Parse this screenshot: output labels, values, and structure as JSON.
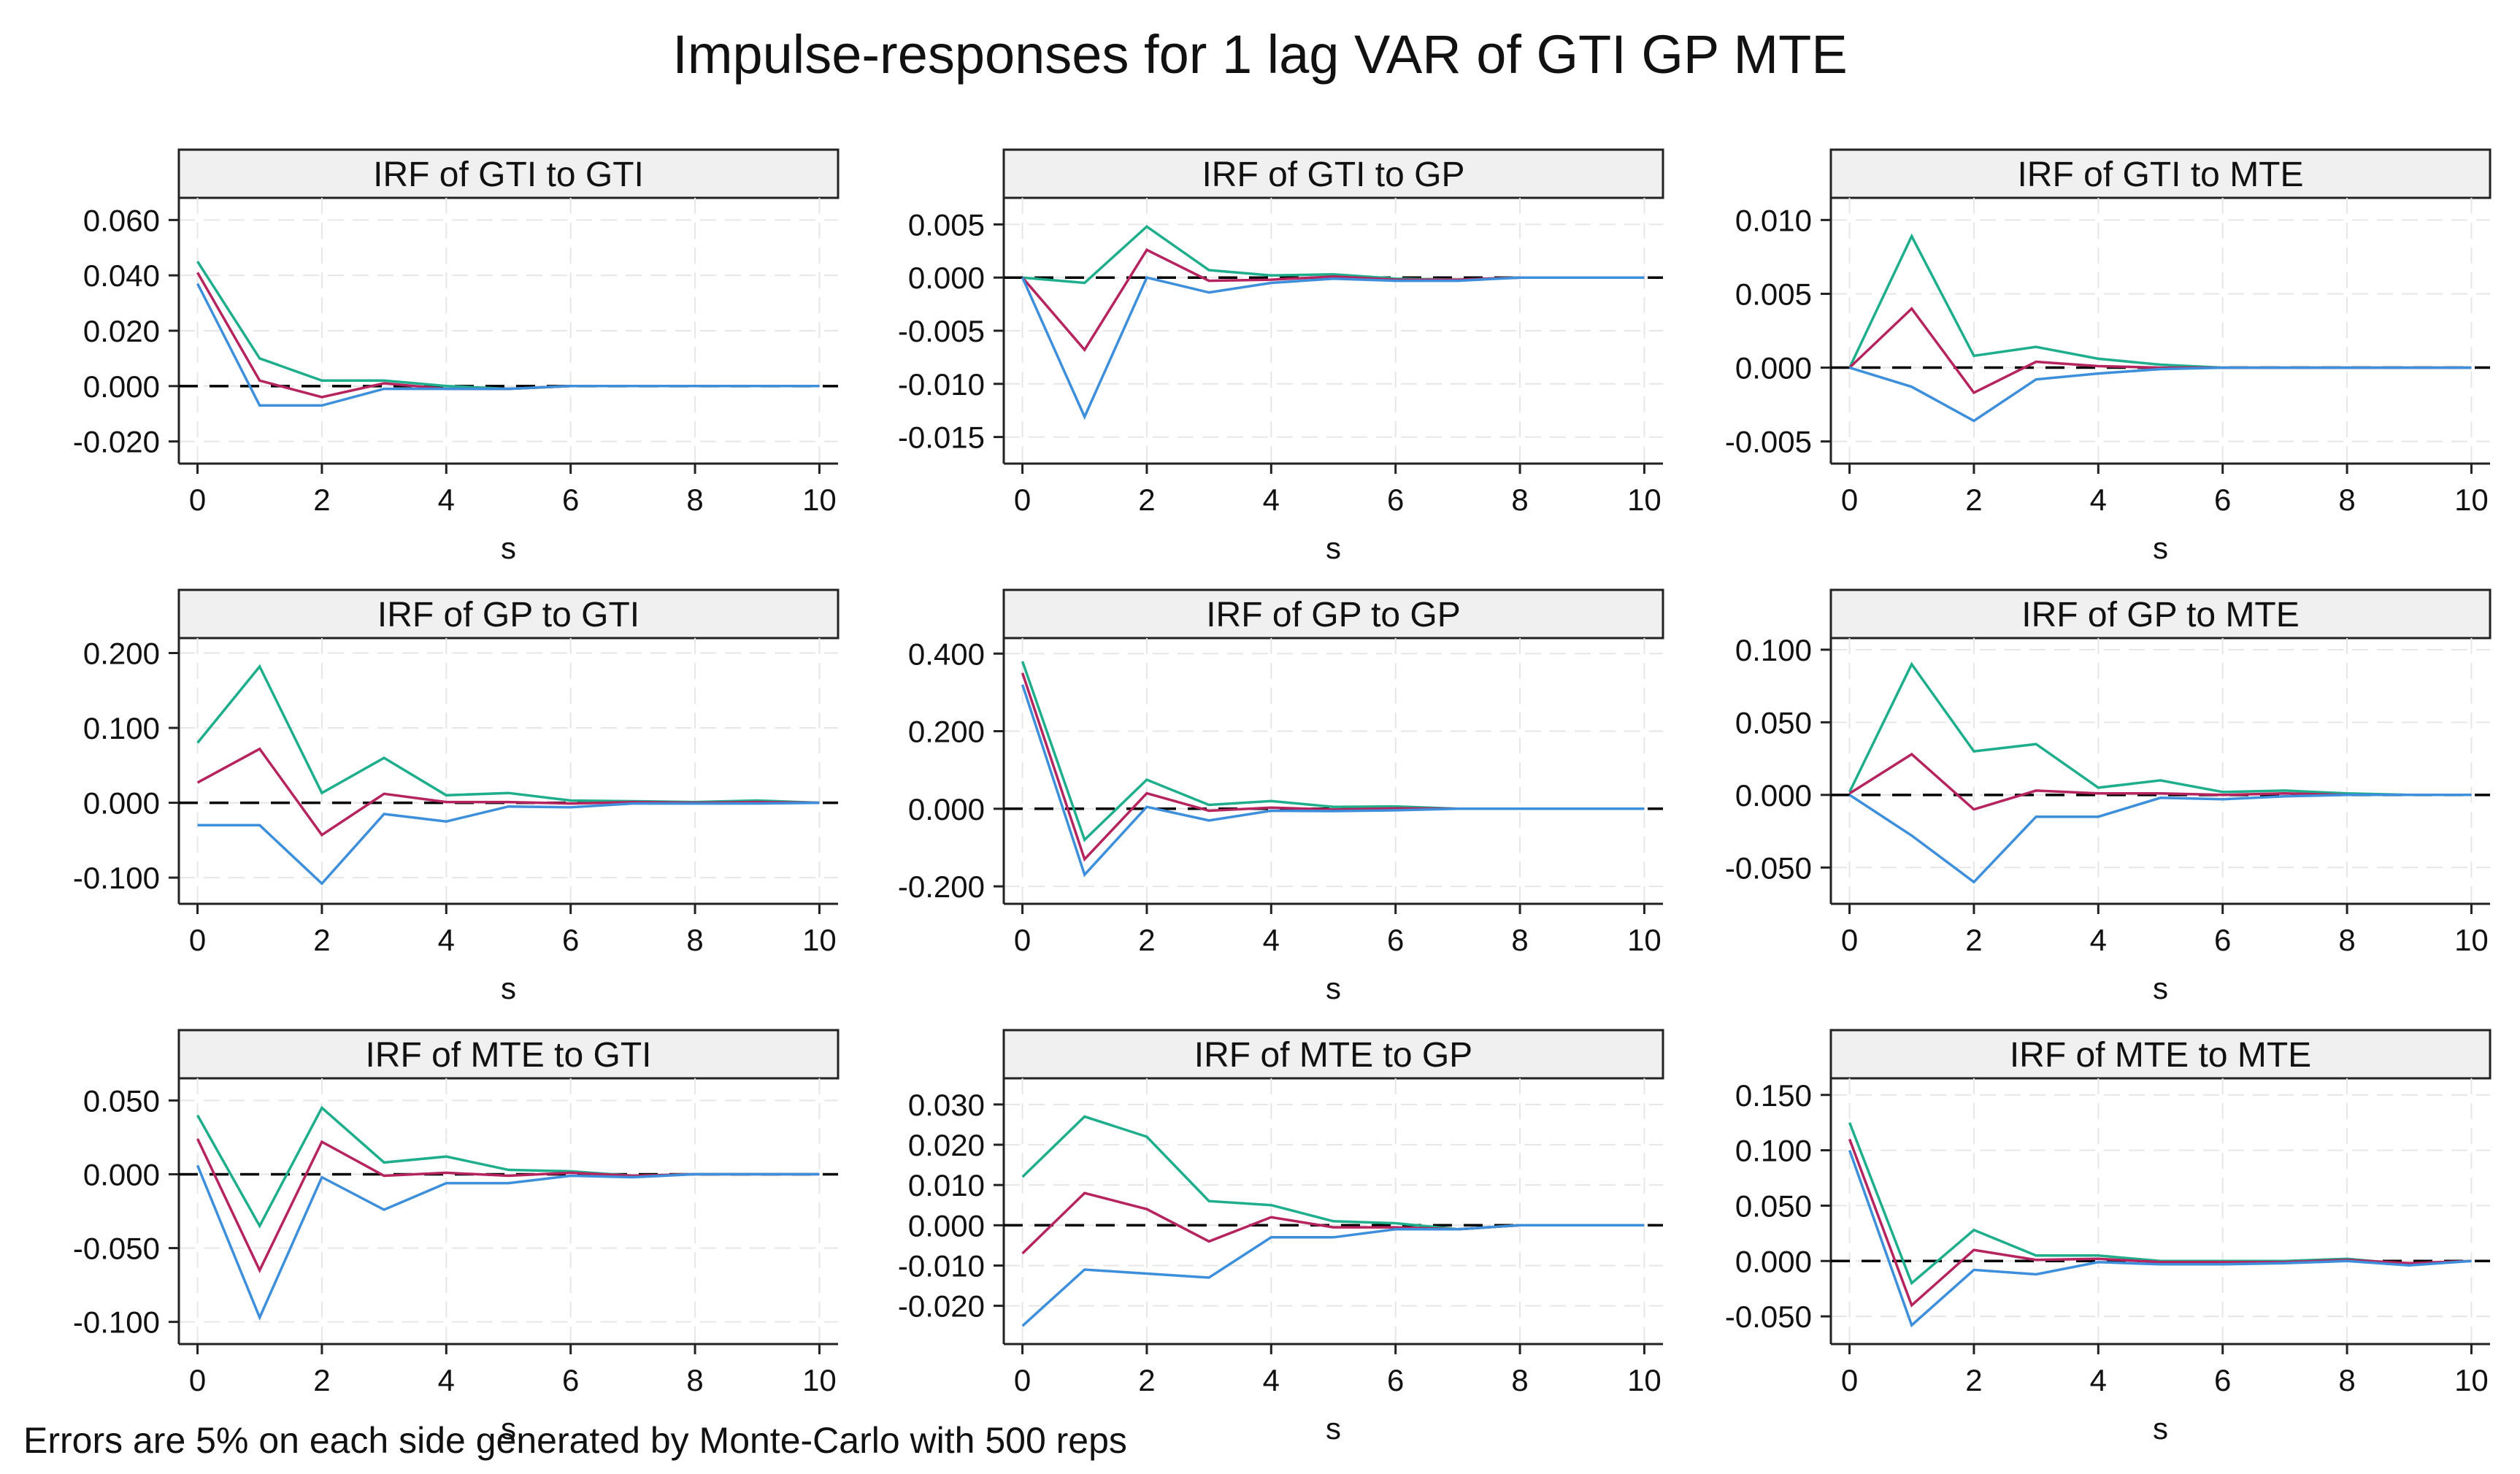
{
  "title": "Impulse-responses for 1 lag VAR of GTI GP MTE",
  "note": "Errors are 5% on each side generated by Monte-Carlo with 500 reps",
  "colors": {
    "upper": "#1fae8c",
    "irf": "#b5245e",
    "lower": "#3d8fdb"
  },
  "chart_data": [
    {
      "type": "line",
      "title": "IRF of GTI to GTI",
      "xlabel": "s",
      "x": [
        0,
        1,
        2,
        3,
        4,
        5,
        6,
        7,
        8,
        9,
        10
      ],
      "xticks": [
        0,
        2,
        4,
        6,
        8,
        10
      ],
      "xtick_labels": [
        "0",
        "2",
        "4",
        "6",
        "8",
        "10"
      ],
      "ylim": [
        -0.028,
        0.068
      ],
      "yticks": [
        -0.02,
        0,
        0.02,
        0.04,
        0.06
      ],
      "ytick_labels": [
        "-0.020",
        "0.000",
        "0.020",
        "0.040",
        "0.060"
      ],
      "series": [
        {
          "name": "upper",
          "values": [
            0.045,
            0.01,
            0.002,
            0.002,
            0.0,
            -0.001,
            0,
            0,
            0,
            0,
            0
          ]
        },
        {
          "name": "irf",
          "values": [
            0.041,
            0.002,
            -0.004,
            0.001,
            -0.001,
            -0.001,
            0,
            0,
            0,
            0,
            0
          ]
        },
        {
          "name": "lower",
          "values": [
            0.037,
            -0.007,
            -0.007,
            -0.001,
            -0.001,
            -0.001,
            0,
            0,
            0,
            0,
            0
          ]
        }
      ]
    },
    {
      "type": "line",
      "title": "IRF of GTI to GP",
      "xlabel": "s",
      "x": [
        0,
        1,
        2,
        3,
        4,
        5,
        6,
        7,
        8,
        9,
        10
      ],
      "xticks": [
        0,
        2,
        4,
        6,
        8,
        10
      ],
      "xtick_labels": [
        "0",
        "2",
        "4",
        "6",
        "8",
        "10"
      ],
      "ylim": [
        -0.0175,
        0.0075
      ],
      "yticks": [
        -0.015,
        -0.01,
        -0.005,
        0,
        0.005
      ],
      "ytick_labels": [
        "-0.015",
        "-0.010",
        "-0.005",
        "0.000",
        "0.005"
      ],
      "series": [
        {
          "name": "upper",
          "values": [
            0,
            -0.0005,
            0.0048,
            0.0007,
            0.0002,
            0.0003,
            -0.0001,
            -0.0002,
            0,
            0,
            0
          ]
        },
        {
          "name": "irf",
          "values": [
            0,
            -0.0068,
            0.0026,
            -0.0003,
            -0.0002,
            0.0001,
            -0.0002,
            -0.0002,
            0,
            0,
            0
          ]
        },
        {
          "name": "lower",
          "values": [
            0,
            -0.0131,
            0.0,
            -0.0014,
            -0.0005,
            -0.0001,
            -0.0003,
            -0.0003,
            0,
            0,
            0
          ]
        }
      ]
    },
    {
      "type": "line",
      "title": "IRF of GTI to MTE",
      "xlabel": "s",
      "x": [
        0,
        1,
        2,
        3,
        4,
        5,
        6,
        7,
        8,
        9,
        10
      ],
      "xticks": [
        0,
        2,
        4,
        6,
        8,
        10
      ],
      "xtick_labels": [
        "0",
        "2",
        "4",
        "6",
        "8",
        "10"
      ],
      "ylim": [
        -0.0065,
        0.0115
      ],
      "yticks": [
        -0.005,
        0,
        0.005,
        0.01
      ],
      "ytick_labels": [
        "-0.005",
        "0.000",
        "0.005",
        "0.010"
      ],
      "series": [
        {
          "name": "upper",
          "values": [
            0,
            0.0089,
            0.0008,
            0.0014,
            0.0006,
            0.0002,
            0,
            0,
            0,
            0,
            0
          ]
        },
        {
          "name": "irf",
          "values": [
            0,
            0.004,
            -0.0017,
            0.0004,
            0.0001,
            0,
            0,
            0,
            0,
            0,
            0
          ]
        },
        {
          "name": "lower",
          "values": [
            0,
            -0.0013,
            -0.0036,
            -0.0008,
            -0.0004,
            -0.0001,
            0,
            0,
            0,
            0,
            0
          ]
        }
      ]
    },
    {
      "type": "line",
      "title": "IRF of GP to GTI",
      "xlabel": "s",
      "x": [
        0,
        1,
        2,
        3,
        4,
        5,
        6,
        7,
        8,
        9,
        10
      ],
      "xticks": [
        0,
        2,
        4,
        6,
        8,
        10
      ],
      "xtick_labels": [
        "0",
        "2",
        "4",
        "6",
        "8",
        "10"
      ],
      "ylim": [
        -0.135,
        0.22
      ],
      "yticks": [
        -0.1,
        0,
        0.1,
        0.2
      ],
      "ytick_labels": [
        "-0.100",
        "0.000",
        "0.100",
        "0.200"
      ],
      "series": [
        {
          "name": "upper",
          "values": [
            0.08,
            0.182,
            0.013,
            0.06,
            0.01,
            0.013,
            0.003,
            0.002,
            0.001,
            0.003,
            0
          ]
        },
        {
          "name": "irf",
          "values": [
            0.027,
            0.072,
            -0.043,
            0.012,
            0.001,
            0.001,
            -0.001,
            0.001,
            0,
            0.001,
            0
          ]
        },
        {
          "name": "lower",
          "values": [
            -0.03,
            -0.03,
            -0.108,
            -0.015,
            -0.025,
            -0.005,
            -0.006,
            -0.001,
            -0.001,
            -0.001,
            0
          ]
        }
      ]
    },
    {
      "type": "line",
      "title": "IRF of GP to GP",
      "xlabel": "s",
      "x": [
        0,
        1,
        2,
        3,
        4,
        5,
        6,
        7,
        8,
        9,
        10
      ],
      "xticks": [
        0,
        2,
        4,
        6,
        8,
        10
      ],
      "xtick_labels": [
        "0",
        "2",
        "4",
        "6",
        "8",
        "10"
      ],
      "ylim": [
        -0.245,
        0.44
      ],
      "yticks": [
        -0.2,
        0,
        0.2,
        0.4
      ],
      "ytick_labels": [
        "-0.200",
        "0.000",
        "0.200",
        "0.400"
      ],
      "series": [
        {
          "name": "upper",
          "values": [
            0.38,
            -0.08,
            0.075,
            0.01,
            0.02,
            0.005,
            0.006,
            0,
            0,
            0,
            0
          ]
        },
        {
          "name": "irf",
          "values": [
            0.35,
            -0.13,
            0.04,
            -0.005,
            0.003,
            -0.002,
            0.001,
            0,
            0,
            0,
            0
          ]
        },
        {
          "name": "lower",
          "values": [
            0.32,
            -0.17,
            0.005,
            -0.03,
            -0.005,
            -0.006,
            -0.004,
            0,
            0,
            0,
            0
          ]
        }
      ]
    },
    {
      "type": "line",
      "title": "IRF of GP to MTE",
      "xlabel": "s",
      "x": [
        0,
        1,
        2,
        3,
        4,
        5,
        6,
        7,
        8,
        9,
        10
      ],
      "xticks": [
        0,
        2,
        4,
        6,
        8,
        10
      ],
      "xtick_labels": [
        "0",
        "2",
        "4",
        "6",
        "8",
        "10"
      ],
      "ylim": [
        -0.075,
        0.108
      ],
      "yticks": [
        -0.05,
        0,
        0.05,
        0.1
      ],
      "ytick_labels": [
        "-0.050",
        "0.000",
        "0.050",
        "0.100"
      ],
      "series": [
        {
          "name": "upper",
          "values": [
            0.002,
            0.09,
            0.03,
            0.035,
            0.005,
            0.01,
            0.002,
            0.003,
            0.001,
            0,
            0
          ]
        },
        {
          "name": "irf",
          "values": [
            0.001,
            0.028,
            -0.01,
            0.003,
            0.001,
            0.001,
            0,
            0.001,
            0,
            0,
            0
          ]
        },
        {
          "name": "lower",
          "values": [
            0,
            -0.028,
            -0.06,
            -0.015,
            -0.015,
            -0.002,
            -0.003,
            -0.001,
            0,
            0,
            0
          ]
        }
      ]
    },
    {
      "type": "line",
      "title": "IRF of MTE to GTI",
      "xlabel": "s",
      "x": [
        0,
        1,
        2,
        3,
        4,
        5,
        6,
        7,
        8,
        9,
        10
      ],
      "xticks": [
        0,
        2,
        4,
        6,
        8,
        10
      ],
      "xtick_labels": [
        "0",
        "2",
        "4",
        "6",
        "8",
        "10"
      ],
      "ylim": [
        -0.115,
        0.065
      ],
      "yticks": [
        -0.1,
        -0.05,
        0,
        0.05
      ],
      "ytick_labels": [
        "-0.100",
        "-0.050",
        "0.000",
        "0.050"
      ],
      "series": [
        {
          "name": "upper",
          "values": [
            0.04,
            -0.035,
            0.045,
            0.008,
            0.012,
            0.003,
            0.002,
            -0.001,
            0,
            0,
            0
          ]
        },
        {
          "name": "irf",
          "values": [
            0.024,
            -0.065,
            0.022,
            -0.001,
            0.001,
            -0.001,
            0.001,
            -0.001,
            0,
            0,
            0
          ]
        },
        {
          "name": "lower",
          "values": [
            0.006,
            -0.097,
            -0.002,
            -0.024,
            -0.006,
            -0.006,
            -0.001,
            -0.002,
            0,
            0,
            0
          ]
        }
      ]
    },
    {
      "type": "line",
      "title": "IRF of MTE to GP",
      "xlabel": "s",
      "x": [
        0,
        1,
        2,
        3,
        4,
        5,
        6,
        7,
        8,
        9,
        10
      ],
      "xticks": [
        0,
        2,
        4,
        6,
        8,
        10
      ],
      "xtick_labels": [
        "0",
        "2",
        "4",
        "6",
        "8",
        "10"
      ],
      "ylim": [
        -0.0295,
        0.0365
      ],
      "yticks": [
        -0.02,
        -0.01,
        0,
        0.01,
        0.02,
        0.03
      ],
      "ytick_labels": [
        "-0.020",
        "-0.010",
        "0.000",
        "0.010",
        "0.020",
        "0.030"
      ],
      "series": [
        {
          "name": "upper",
          "values": [
            0.012,
            0.027,
            0.022,
            0.006,
            0.005,
            0.001,
            0.0005,
            -0.001,
            0,
            0,
            0
          ]
        },
        {
          "name": "irf",
          "values": [
            -0.007,
            0.008,
            0.004,
            -0.004,
            0.002,
            -0.0005,
            -0.0005,
            -0.001,
            0,
            0,
            0
          ]
        },
        {
          "name": "lower",
          "values": [
            -0.025,
            -0.011,
            -0.012,
            -0.013,
            -0.003,
            -0.003,
            -0.001,
            -0.001,
            0,
            0,
            0
          ]
        }
      ]
    },
    {
      "type": "line",
      "title": "IRF of MTE to MTE",
      "xlabel": "s",
      "x": [
        0,
        1,
        2,
        3,
        4,
        5,
        6,
        7,
        8,
        9,
        10
      ],
      "xticks": [
        0,
        2,
        4,
        6,
        8,
        10
      ],
      "xtick_labels": [
        "0",
        "2",
        "4",
        "6",
        "8",
        "10"
      ],
      "ylim": [
        -0.075,
        0.165
      ],
      "yticks": [
        -0.05,
        0,
        0.05,
        0.1,
        0.15
      ],
      "ytick_labels": [
        "-0.050",
        "0.000",
        "0.050",
        "0.100",
        "0.150"
      ],
      "series": [
        {
          "name": "upper",
          "values": [
            0.125,
            -0.02,
            0.028,
            0.005,
            0.005,
            0.0,
            0,
            0,
            0.002,
            -0.003,
            0
          ]
        },
        {
          "name": "irf",
          "values": [
            0.11,
            -0.04,
            0.01,
            0.001,
            0.002,
            -0.001,
            -0.001,
            -0.001,
            0.001,
            -0.002,
            0
          ]
        },
        {
          "name": "lower",
          "values": [
            0.1,
            -0.058,
            -0.008,
            -0.012,
            -0.001,
            -0.003,
            -0.003,
            -0.002,
            0,
            -0.004,
            0
          ]
        }
      ]
    }
  ]
}
